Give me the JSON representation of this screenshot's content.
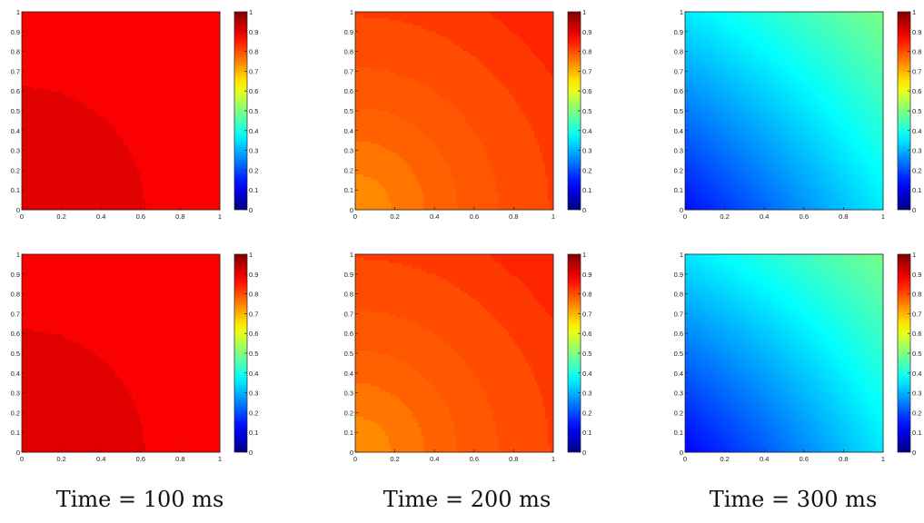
{
  "figure": {
    "captions": [
      "Time = 100 ms",
      "Time = 200 ms",
      "Time = 300 ms"
    ]
  },
  "colormap": "jet",
  "chart_data": [
    {
      "type": "heatmap",
      "row": 0,
      "col": 0,
      "caption": "Time = 100 ms",
      "xlim": [
        0,
        1
      ],
      "ylim": [
        0,
        1
      ],
      "clim": [
        0,
        1
      ],
      "x_ticks": [
        0,
        0.2,
        0.4,
        0.6,
        0.8,
        1
      ],
      "x_tick_labels": [
        "0",
        "0.2",
        "0.4",
        "0.6",
        "0.8",
        "1"
      ],
      "y_ticks": [
        0,
        0.1,
        0.2,
        0.3,
        0.4,
        0.5,
        0.6,
        0.7,
        0.8,
        0.9,
        1
      ],
      "y_tick_labels": [
        "0",
        "0.1",
        "0.2",
        "0.3",
        "0.4",
        "0.5",
        "0.6",
        "0.7",
        "0.8",
        "0.9",
        "1"
      ],
      "colorbar_ticks": [
        0,
        0.1,
        0.2,
        0.3,
        0.4,
        0.5,
        0.6,
        0.7,
        0.8,
        0.9,
        1
      ],
      "colorbar_tick_labels": [
        "0",
        "0.1",
        "0.2",
        "0.3",
        "0.4",
        "0.5",
        "0.6",
        "0.7",
        "0.8",
        "0.9",
        "1"
      ],
      "field": {
        "kind": "radial",
        "center": [
          0,
          0
        ],
        "levels": [
          {
            "r_max": 0.62,
            "value": 0.905
          },
          {
            "r_max": 99,
            "value": 0.88
          }
        ]
      }
    },
    {
      "type": "heatmap",
      "row": 0,
      "col": 1,
      "caption": "Time = 200 ms",
      "xlim": [
        0,
        1
      ],
      "ylim": [
        0,
        1
      ],
      "clim": [
        0,
        1
      ],
      "x_ticks": [
        0,
        0.2,
        0.4,
        0.6,
        0.8,
        1
      ],
      "x_tick_labels": [
        "0",
        "0.2",
        "0.4",
        "0.6",
        "0.8",
        "1"
      ],
      "y_ticks": [
        0,
        0.1,
        0.2,
        0.3,
        0.4,
        0.5,
        0.6,
        0.7,
        0.8,
        0.9,
        1
      ],
      "y_tick_labels": [
        "0",
        "0.1",
        "0.2",
        "0.3",
        "0.4",
        "0.5",
        "0.6",
        "0.7",
        "0.8",
        "0.9",
        "1"
      ],
      "colorbar_ticks": [
        0,
        0.1,
        0.2,
        0.3,
        0.4,
        0.5,
        0.6,
        0.7,
        0.8,
        0.9,
        1
      ],
      "colorbar_tick_labels": [
        "0",
        "0.1",
        "0.2",
        "0.3",
        "0.4",
        "0.5",
        "0.6",
        "0.7",
        "0.8",
        "0.9",
        "1"
      ],
      "field": {
        "kind": "radial",
        "center": [
          0,
          0
        ],
        "levels": [
          {
            "r_max": 0.18,
            "value": 0.74
          },
          {
            "r_max": 0.35,
            "value": 0.76
          },
          {
            "r_max": 0.52,
            "value": 0.78
          },
          {
            "r_max": 0.72,
            "value": 0.79
          },
          {
            "r_max": 0.98,
            "value": 0.8
          },
          {
            "r_max": 1.2,
            "value": 0.82
          },
          {
            "r_max": 99,
            "value": 0.84
          }
        ]
      }
    },
    {
      "type": "heatmap",
      "row": 0,
      "col": 2,
      "caption": "Time = 300 ms",
      "xlim": [
        0,
        1
      ],
      "ylim": [
        0,
        1
      ],
      "clim": [
        0,
        1
      ],
      "x_ticks": [
        0,
        0.2,
        0.4,
        0.6,
        0.8,
        1
      ],
      "x_tick_labels": [
        "0",
        "0.2",
        "0.4",
        "0.6",
        "0.8",
        "1"
      ],
      "y_ticks": [
        0,
        0.1,
        0.2,
        0.3,
        0.4,
        0.5,
        0.6,
        0.7,
        0.8,
        0.9,
        1
      ],
      "y_tick_labels": [
        "0",
        "0.1",
        "0.2",
        "0.3",
        "0.4",
        "0.5",
        "0.6",
        "0.7",
        "0.8",
        "0.9",
        "1"
      ],
      "colorbar_ticks": [
        0,
        0.1,
        0.2,
        0.3,
        0.4,
        0.5,
        0.6,
        0.7,
        0.8,
        0.9,
        1
      ],
      "colorbar_tick_labels": [
        "0",
        "0.1",
        "0.2",
        "0.3",
        "0.4",
        "0.5",
        "0.6",
        "0.7",
        "0.8",
        "0.9",
        "1"
      ],
      "field": {
        "kind": "smooth",
        "corners": {
          "x0y0": 0.14,
          "x1y0": 0.36,
          "x0y1": 0.36,
          "x1y1": 0.5
        },
        "center": 0.33
      }
    },
    {
      "type": "heatmap",
      "row": 1,
      "col": 0,
      "caption": "Time = 100 ms",
      "xlim": [
        0,
        1
      ],
      "ylim": [
        0,
        1
      ],
      "clim": [
        0,
        1
      ],
      "x_ticks": [
        0,
        0.2,
        0.4,
        0.6,
        0.8,
        1
      ],
      "x_tick_labels": [
        "0",
        "0.2",
        "0.4",
        "0.6",
        "0.8",
        "1"
      ],
      "y_ticks": [
        0,
        0.1,
        0.2,
        0.3,
        0.4,
        0.5,
        0.6,
        0.7,
        0.8,
        0.9,
        1
      ],
      "y_tick_labels": [
        "0",
        "0.1",
        "0.2",
        "0.3",
        "0.4",
        "0.5",
        "0.6",
        "0.7",
        "0.8",
        "0.9",
        "1"
      ],
      "colorbar_ticks": [
        0,
        0.1,
        0.2,
        0.3,
        0.4,
        0.5,
        0.6,
        0.7,
        0.8,
        0.9,
        1
      ],
      "colorbar_tick_labels": [
        "0",
        "0.1",
        "0.2",
        "0.3",
        "0.4",
        "0.5",
        "0.6",
        "0.7",
        "0.8",
        "0.9",
        "1"
      ],
      "field": {
        "kind": "radial",
        "center": [
          0,
          0
        ],
        "levels": [
          {
            "r_max": 0.62,
            "value": 0.905
          },
          {
            "r_max": 99,
            "value": 0.88
          }
        ]
      }
    },
    {
      "type": "heatmap",
      "row": 1,
      "col": 1,
      "caption": "Time = 200 ms",
      "xlim": [
        0,
        1
      ],
      "ylim": [
        0,
        1
      ],
      "clim": [
        0,
        1
      ],
      "x_ticks": [
        0,
        0.2,
        0.4,
        0.6,
        0.8,
        1
      ],
      "x_tick_labels": [
        "0",
        "0.2",
        "0.4",
        "0.6",
        "0.8",
        "1"
      ],
      "y_ticks": [
        0,
        0.1,
        0.2,
        0.3,
        0.4,
        0.5,
        0.6,
        0.7,
        0.8,
        0.9,
        1
      ],
      "y_tick_labels": [
        "0",
        "0.1",
        "0.2",
        "0.3",
        "0.4",
        "0.5",
        "0.6",
        "0.7",
        "0.8",
        "0.9",
        "1"
      ],
      "colorbar_ticks": [
        0,
        0.1,
        0.2,
        0.3,
        0.4,
        0.5,
        0.6,
        0.7,
        0.8,
        0.9,
        1
      ],
      "colorbar_tick_labels": [
        "0",
        "0.1",
        "0.2",
        "0.3",
        "0.4",
        "0.5",
        "0.6",
        "0.7",
        "0.8",
        "0.9",
        "1"
      ],
      "field": {
        "kind": "radial",
        "center": [
          0,
          0
        ],
        "levels": [
          {
            "r_max": 0.18,
            "value": 0.74
          },
          {
            "r_max": 0.35,
            "value": 0.76
          },
          {
            "r_max": 0.52,
            "value": 0.78
          },
          {
            "r_max": 0.72,
            "value": 0.79
          },
          {
            "r_max": 0.98,
            "value": 0.8
          },
          {
            "r_max": 1.2,
            "value": 0.82
          },
          {
            "r_max": 99,
            "value": 0.84
          }
        ]
      }
    },
    {
      "type": "heatmap",
      "row": 1,
      "col": 2,
      "caption": "Time = 300 ms",
      "xlim": [
        0,
        1
      ],
      "ylim": [
        0,
        1
      ],
      "clim": [
        0,
        1
      ],
      "x_ticks": [
        0,
        0.2,
        0.4,
        0.6,
        0.8,
        1
      ],
      "x_tick_labels": [
        "0",
        "0.2",
        "0.4",
        "0.6",
        "0.8",
        "1"
      ],
      "y_ticks": [
        0,
        0.1,
        0.2,
        0.3,
        0.4,
        0.5,
        0.6,
        0.7,
        0.8,
        0.9,
        1
      ],
      "y_tick_labels": [
        "0",
        "0.1",
        "0.2",
        "0.3",
        "0.4",
        "0.5",
        "0.6",
        "0.7",
        "0.8",
        "0.9",
        "1"
      ],
      "colorbar_ticks": [
        0,
        0.1,
        0.2,
        0.3,
        0.4,
        0.5,
        0.6,
        0.7,
        0.8,
        0.9,
        1
      ],
      "colorbar_tick_labels": [
        "0",
        "0.1",
        "0.2",
        "0.3",
        "0.4",
        "0.5",
        "0.6",
        "0.7",
        "0.8",
        "0.9",
        "1"
      ],
      "field": {
        "kind": "smooth",
        "corners": {
          "x0y0": 0.13,
          "x1y0": 0.36,
          "x0y1": 0.36,
          "x1y1": 0.5
        },
        "center": 0.32
      }
    }
  ]
}
